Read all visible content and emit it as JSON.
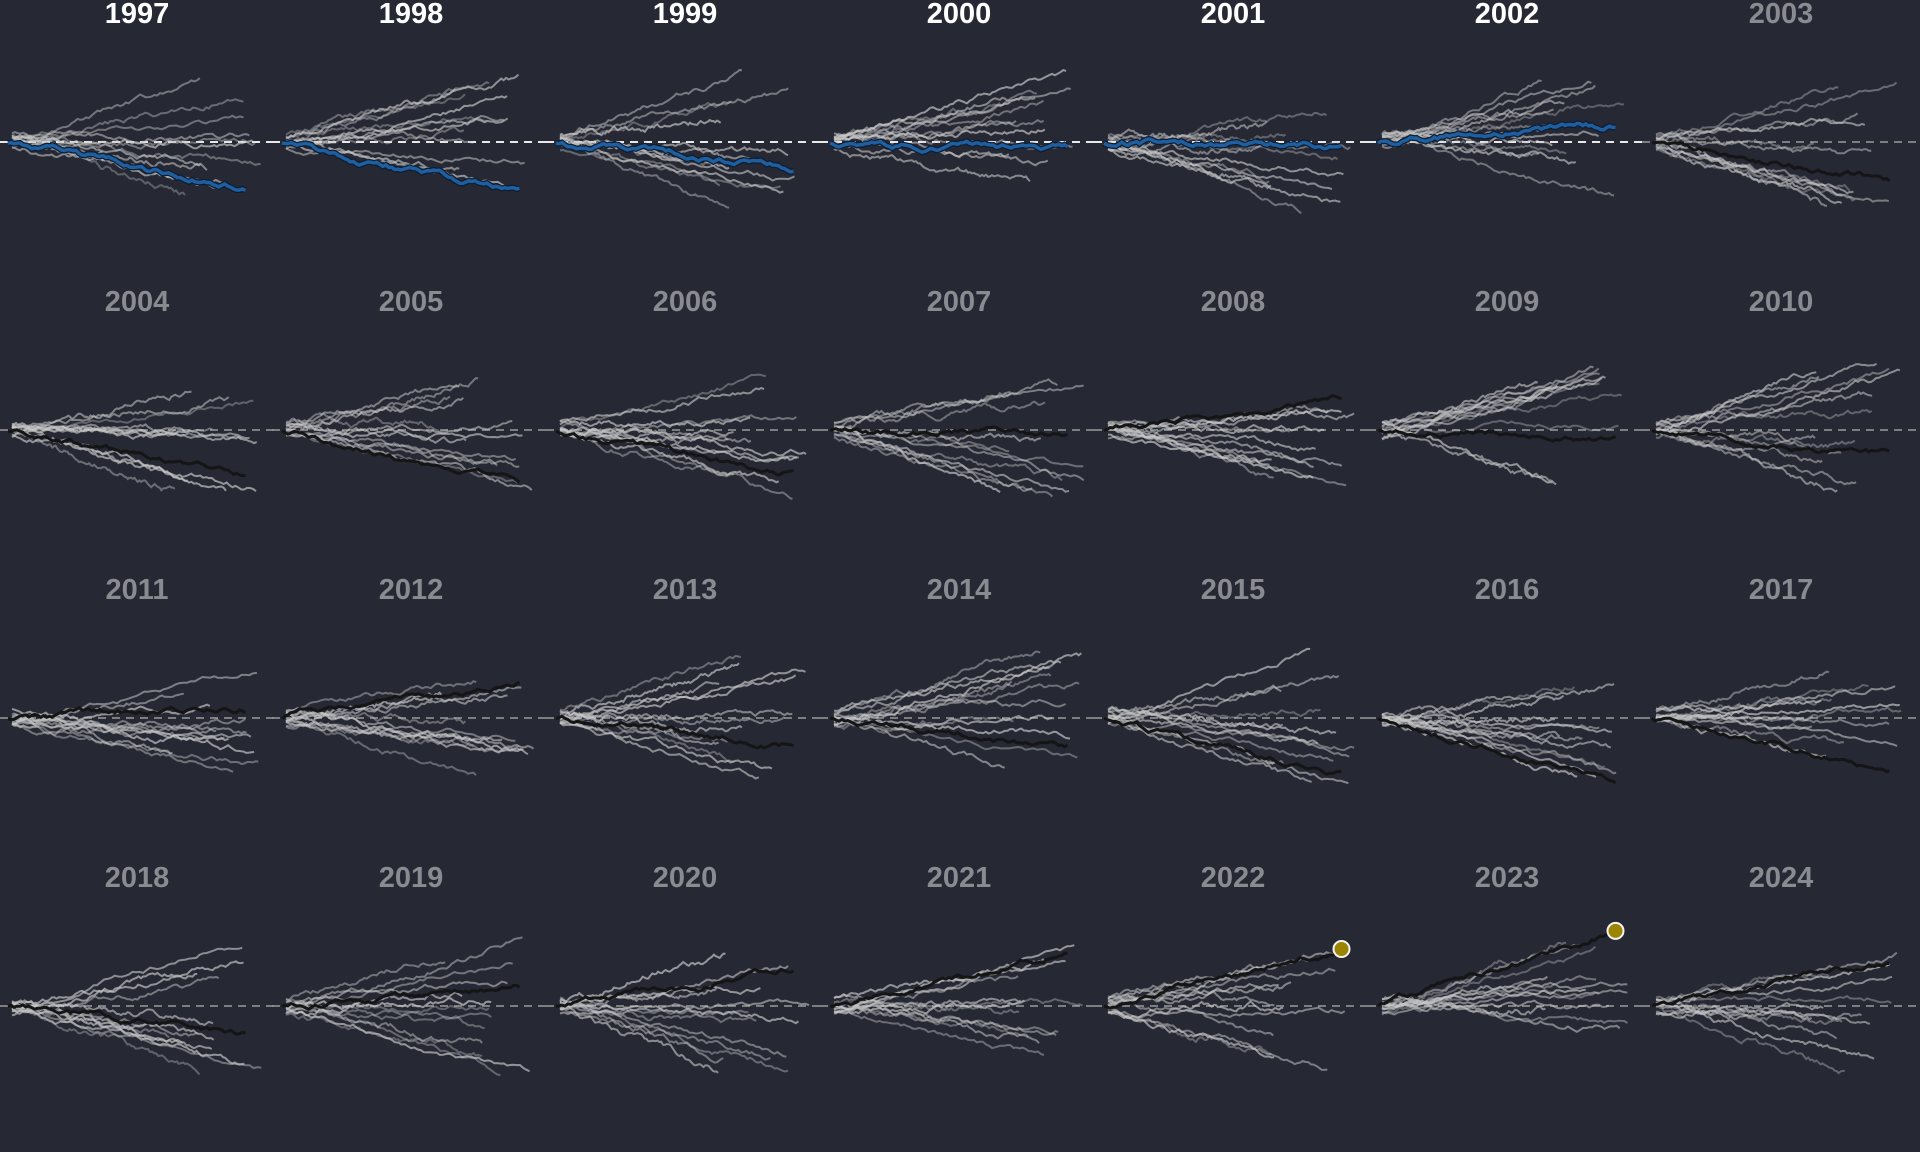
{
  "colors": {
    "background": "#262834",
    "trace": "#c8c8c8",
    "focus_highlight": "#1f5f9f",
    "focus_dark": "#151515",
    "endpoint_marker": "#9a8400",
    "baseline": "#9a9a9a",
    "title_highlight": "#ffffff",
    "title_muted": "#8a8b90"
  },
  "chart_data": {
    "type": "line",
    "title": "",
    "xlabel": "",
    "ylabel": "",
    "grid": false,
    "legend": "none",
    "baseline": 0,
    "layout": "small multiples, 7 columns x 4 rows",
    "ylim": [
      -100,
      80
    ],
    "panels": [
      {
        "title": "1997",
        "highlighted": true,
        "focus_end": -52,
        "focus_color": "focus_highlight",
        "endpoint_marker": false
      },
      {
        "title": "1998",
        "highlighted": true,
        "focus_end": -58,
        "focus_color": "focus_highlight",
        "endpoint_marker": false
      },
      {
        "title": "1999",
        "highlighted": true,
        "focus_end": -28,
        "focus_color": "focus_highlight",
        "endpoint_marker": false
      },
      {
        "title": "2000",
        "highlighted": true,
        "focus_end": -8,
        "focus_color": "focus_highlight",
        "endpoint_marker": false
      },
      {
        "title": "2001",
        "highlighted": true,
        "focus_end": -4,
        "focus_color": "focus_highlight",
        "endpoint_marker": false
      },
      {
        "title": "2002",
        "highlighted": true,
        "focus_end": 18,
        "focus_color": "focus_highlight",
        "endpoint_marker": false
      },
      {
        "title": "2003",
        "highlighted": false,
        "focus_end": -42,
        "focus_color": "focus_dark",
        "endpoint_marker": false
      },
      {
        "title": "2004",
        "highlighted": false,
        "focus_end": -52,
        "focus_color": "focus_dark",
        "endpoint_marker": false
      },
      {
        "title": "2005",
        "highlighted": false,
        "focus_end": -60,
        "focus_color": "focus_dark",
        "endpoint_marker": false
      },
      {
        "title": "2006",
        "highlighted": false,
        "focus_end": -50,
        "focus_color": "focus_dark",
        "endpoint_marker": false
      },
      {
        "title": "2007",
        "highlighted": false,
        "focus_end": -2,
        "focus_color": "focus_dark",
        "endpoint_marker": false
      },
      {
        "title": "2008",
        "highlighted": false,
        "focus_end": 35,
        "focus_color": "focus_dark",
        "endpoint_marker": false
      },
      {
        "title": "2009",
        "highlighted": false,
        "focus_end": -10,
        "focus_color": "focus_dark",
        "endpoint_marker": false
      },
      {
        "title": "2010",
        "highlighted": false,
        "focus_end": -28,
        "focus_color": "focus_dark",
        "endpoint_marker": false
      },
      {
        "title": "2011",
        "highlighted": false,
        "focus_end": 10,
        "focus_color": "focus_dark",
        "endpoint_marker": false
      },
      {
        "title": "2012",
        "highlighted": false,
        "focus_end": 42,
        "focus_color": "focus_dark",
        "endpoint_marker": false
      },
      {
        "title": "2013",
        "highlighted": false,
        "focus_end": -30,
        "focus_color": "focus_dark",
        "endpoint_marker": false
      },
      {
        "title": "2014",
        "highlighted": false,
        "focus_end": -32,
        "focus_color": "focus_dark",
        "endpoint_marker": false
      },
      {
        "title": "2015",
        "highlighted": false,
        "focus_end": -62,
        "focus_color": "focus_dark",
        "endpoint_marker": false
      },
      {
        "title": "2016",
        "highlighted": false,
        "focus_end": -68,
        "focus_color": "focus_dark",
        "endpoint_marker": false
      },
      {
        "title": "2017",
        "highlighted": false,
        "focus_end": -58,
        "focus_color": "focus_dark",
        "endpoint_marker": false
      },
      {
        "title": "2018",
        "highlighted": false,
        "focus_end": -30,
        "focus_color": "focus_dark",
        "endpoint_marker": false
      },
      {
        "title": "2019",
        "highlighted": false,
        "focus_end": 20,
        "focus_color": "focus_dark",
        "endpoint_marker": false
      },
      {
        "title": "2020",
        "highlighted": false,
        "focus_end": 40,
        "focus_color": "focus_dark",
        "endpoint_marker": false
      },
      {
        "title": "2021",
        "highlighted": false,
        "focus_end": 60,
        "focus_color": "focus_dark",
        "endpoint_marker": false
      },
      {
        "title": "2022",
        "highlighted": false,
        "focus_end": 65,
        "focus_color": "focus_dark",
        "endpoint_marker": true
      },
      {
        "title": "2023",
        "highlighted": false,
        "focus_end": 84,
        "focus_color": "focus_dark",
        "endpoint_marker": true
      },
      {
        "title": "2024",
        "highlighted": false,
        "focus_end": 52,
        "focus_color": "focus_dark",
        "endpoint_marker": false
      }
    ]
  }
}
